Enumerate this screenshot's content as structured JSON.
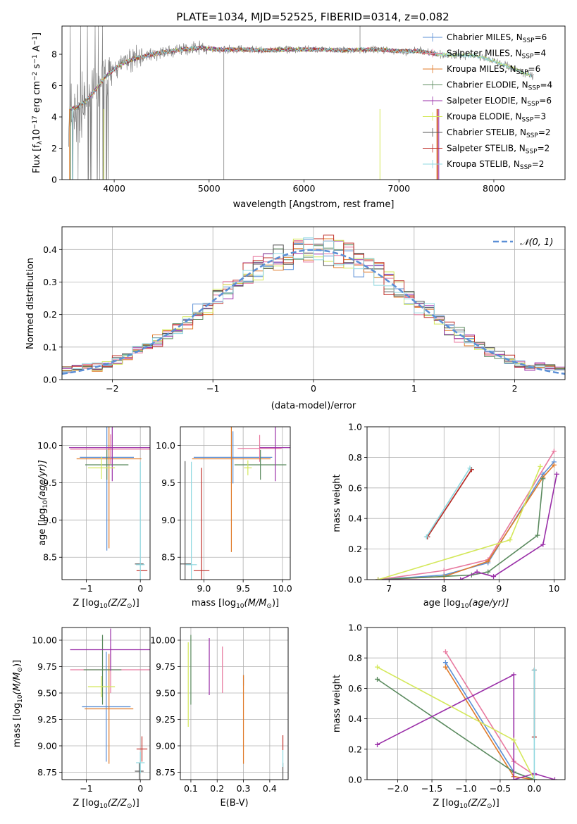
{
  "figure": {
    "title": "PLATE=1034, MJD=52525, FIBERID=0314, z=0.082"
  },
  "series": [
    {
      "key": "chabrier_miles",
      "label_pre": "Chabrier MILES, N",
      "label_sub": "SSP",
      "label_post": "=6",
      "color": "#5b8fd6"
    },
    {
      "key": "salpeter_miles",
      "label_pre": "Salpeter MILES, N",
      "label_sub": "SSP",
      "label_post": "=4",
      "color": "#e8799f"
    },
    {
      "key": "kroupa_miles",
      "label_pre": "Kroupa MILES, N",
      "label_sub": "SSP",
      "label_post": "=6",
      "color": "#e07b2a"
    },
    {
      "key": "chabrier_elodie",
      "label_pre": "Chabrier ELODIE, N",
      "label_sub": "SSP",
      "label_post": "=4",
      "color": "#5a8a5e"
    },
    {
      "key": "salpeter_elodie",
      "label_pre": "Salpeter ELODIE, N",
      "label_sub": "SSP",
      "label_post": "=6",
      "color": "#9a2fa8"
    },
    {
      "key": "kroupa_elodie",
      "label_pre": "Kroupa ELODIE, N",
      "label_sub": "SSP",
      "label_post": "=3",
      "color": "#d4e85a"
    },
    {
      "key": "chabrier_stelib",
      "label_pre": "Chabrier STELIB, N",
      "label_sub": "SSP",
      "label_post": "=2",
      "color": "#555555"
    },
    {
      "key": "salpeter_stelib",
      "label_pre": "Salpeter STELIB, N",
      "label_sub": "SSP",
      "label_post": "=2",
      "color": "#c0302a"
    },
    {
      "key": "kroupa_stelib",
      "label_pre": "Kroupa STELIB, N",
      "label_sub": "SSP",
      "label_post": "=2",
      "color": "#8fd8e0"
    }
  ],
  "chart_data": [
    {
      "id": "spectrum",
      "type": "line",
      "xlabel": "wavelength [Angstrom, rest frame]",
      "ylabel_parts": [
        "Flux [f",
        "λ",
        "10",
        "−17",
        " erg cm",
        "−2",
        " s",
        "−1",
        " A",
        "−1",
        "]"
      ],
      "xlim": [
        3450,
        8750
      ],
      "ylim": [
        0,
        9.8
      ],
      "xticks": [
        4000,
        5000,
        6000,
        7000,
        8000
      ],
      "yticks": [
        0,
        2,
        4,
        6,
        8
      ],
      "data_color": "#808080",
      "data_points": [
        [
          3520,
          4.3
        ],
        [
          3600,
          4.4
        ],
        [
          3700,
          4.8
        ],
        [
          3800,
          5.6
        ],
        [
          3900,
          6.5
        ],
        [
          4000,
          7.0
        ],
        [
          4100,
          7.4
        ],
        [
          4200,
          7.7
        ],
        [
          4300,
          7.8
        ],
        [
          4400,
          8.0
        ],
        [
          4500,
          8.1
        ],
        [
          4600,
          8.2
        ],
        [
          4700,
          8.3
        ],
        [
          4800,
          8.35
        ],
        [
          4900,
          8.4
        ],
        [
          5000,
          8.35
        ],
        [
          5100,
          8.3
        ],
        [
          5200,
          8.3
        ],
        [
          5400,
          8.3
        ],
        [
          5600,
          8.25
        ],
        [
          5800,
          8.3
        ],
        [
          6000,
          8.3
        ],
        [
          6200,
          8.3
        ],
        [
          6400,
          8.25
        ],
        [
          6600,
          8.3
        ],
        [
          6800,
          8.3
        ],
        [
          7000,
          8.2
        ],
        [
          7200,
          8.2
        ],
        [
          7400,
          8.0
        ],
        [
          7600,
          7.95
        ],
        [
          7800,
          7.9
        ],
        [
          8000,
          7.6
        ],
        [
          8200,
          7.1
        ],
        [
          8400,
          6.6
        ]
      ],
      "model_points": [
        [
          3520,
          4.5
        ],
        [
          3600,
          4.6
        ],
        [
          3700,
          5.0
        ],
        [
          3800,
          5.7
        ],
        [
          3900,
          6.5
        ],
        [
          4000,
          7.05
        ],
        [
          4100,
          7.45
        ],
        [
          4200,
          7.7
        ],
        [
          4300,
          7.85
        ],
        [
          4400,
          8.0
        ],
        [
          4500,
          8.1
        ],
        [
          4600,
          8.2
        ],
        [
          4700,
          8.3
        ],
        [
          4800,
          8.35
        ],
        [
          4900,
          8.4
        ],
        [
          5000,
          8.35
        ],
        [
          5100,
          8.3
        ],
        [
          5200,
          8.3
        ],
        [
          5400,
          8.3
        ],
        [
          5600,
          8.25
        ],
        [
          5800,
          8.3
        ],
        [
          6000,
          8.3
        ],
        [
          6200,
          8.3
        ],
        [
          6400,
          8.25
        ],
        [
          6600,
          8.3
        ],
        [
          6800,
          8.3
        ],
        [
          7000,
          8.2
        ],
        [
          7200,
          8.2
        ],
        [
          7400,
          8.0
        ],
        [
          7600,
          7.95
        ],
        [
          7800,
          7.9
        ],
        [
          8000,
          7.6
        ],
        [
          8200,
          7.1
        ],
        [
          8400,
          6.6
        ]
      ],
      "model_end": [
        7400,
        7400,
        7400,
        7400,
        7400,
        8400,
        7400,
        7400,
        8400
      ]
    },
    {
      "id": "residuals",
      "type": "histogram",
      "xlabel": "(data-model)/error",
      "ylabel": "Normed distribution",
      "xlim": [
        -2.5,
        2.5
      ],
      "ylim": [
        0,
        0.47
      ],
      "xticks": [
        -2,
        -1,
        0,
        1,
        2
      ],
      "yticks": [
        0.0,
        0.1,
        0.2,
        0.3,
        0.4
      ],
      "bin_width": 0.1,
      "gaussian_label": "𝒩(0, 1)",
      "gaussian_color": "#5b8fd6"
    },
    {
      "id": "age_vs_Z",
      "type": "errorbar",
      "xlabel_parts": [
        "Z [log",
        "10",
        "(Z/Z",
        "⊙",
        ")]"
      ],
      "ylabel_parts": [
        "age  [log",
        "10",
        "(age/yr)]"
      ],
      "xlim": [
        -1.45,
        0.18
      ],
      "ylim": [
        8.2,
        10.25
      ],
      "xticks": [
        -1,
        0
      ],
      "yticks": [
        8.5,
        9.0,
        9.5,
        10.0
      ],
      "points": [
        {
          "s": 0,
          "x": -0.62,
          "xerr": 0.5,
          "y": 9.84,
          "yerr": 1.25
        },
        {
          "s": 1,
          "x": -0.55,
          "xerr": 0.75,
          "y": 9.95,
          "yerr": 0.2
        },
        {
          "s": 2,
          "x": -0.58,
          "xerr": 0.6,
          "y": 9.82,
          "yerr": 1.2
        },
        {
          "s": 3,
          "x": -0.62,
          "xerr": 0.4,
          "y": 9.74,
          "yerr": 0.2
        },
        {
          "s": 4,
          "x": -0.52,
          "xerr": 0.8,
          "y": 9.97,
          "yerr": 0.45
        },
        {
          "s": 5,
          "x": -0.72,
          "xerr": 0.25,
          "y": 9.7,
          "yerr": 0.15
        },
        {
          "s": 6,
          "x": -0.02,
          "xerr": 0.08,
          "y": 8.41,
          "yerr": 0.0
        },
        {
          "s": 7,
          "x": 0.03,
          "xerr": 0.1,
          "y": 8.32,
          "yerr": 0.0
        },
        {
          "s": 8,
          "x": 0.0,
          "xerr": 0.08,
          "y": 8.4,
          "yerr": 1.38
        }
      ]
    },
    {
      "id": "age_vs_mass",
      "type": "errorbar",
      "xlabel_parts": [
        "mass [log",
        "10",
        "(M/M",
        "⊙",
        ")]"
      ],
      "xlim": [
        8.7,
        10.1
      ],
      "ylim": [
        8.2,
        10.25
      ],
      "xticks": [
        9.0,
        9.5,
        10.0
      ],
      "yticks": [
        8.5,
        9.0,
        9.5,
        10.0
      ],
      "points": [
        {
          "s": 0,
          "x": 9.37,
          "xerr": 0.5,
          "y": 9.84,
          "yerr": 0.35
        },
        {
          "s": 1,
          "x": 9.71,
          "xerr": 0.28,
          "y": 9.96,
          "yerr": 0.18
        },
        {
          "s": 2,
          "x": 9.35,
          "xerr": 0.5,
          "y": 9.82,
          "yerr": 1.25
        },
        {
          "s": 3,
          "x": 9.72,
          "xerr": 0.33,
          "y": 9.74,
          "yerr": 0.2
        },
        {
          "s": 4,
          "x": 9.91,
          "xerr": 0.2,
          "y": 9.97,
          "yerr": 0.45
        },
        {
          "s": 5,
          "x": 9.56,
          "xerr": 0.05,
          "y": 9.7,
          "yerr": 0.1
        },
        {
          "s": 6,
          "x": 8.76,
          "xerr": 0.08,
          "y": 8.41,
          "yerr": 1.38
        },
        {
          "s": 7,
          "x": 8.97,
          "xerr": 0.1,
          "y": 8.32,
          "yerr": 1.38
        },
        {
          "s": 8,
          "x": 8.84,
          "xerr": 0.07,
          "y": 8.4,
          "yerr": 1.38
        }
      ]
    },
    {
      "id": "weight_vs_age",
      "type": "line",
      "xlabel_parts": [
        "age  [log",
        "10",
        "(age/yr)]"
      ],
      "ylabel": "mass weight",
      "xlim": [
        6.6,
        10.2
      ],
      "ylim": [
        0,
        1.0
      ],
      "xticks": [
        7,
        8,
        9,
        10
      ],
      "yticks": [
        0.0,
        0.2,
        0.4,
        0.6,
        0.8,
        1.0
      ],
      "lines": [
        {
          "s": 0,
          "pts": [
            [
              6.8,
              0
            ],
            [
              8.0,
              0.03
            ],
            [
              8.8,
              0.11
            ],
            [
              9.8,
              0.69
            ],
            [
              10.0,
              0.77
            ]
          ]
        },
        {
          "s": 1,
          "pts": [
            [
              6.8,
              0
            ],
            [
              8.0,
              0.06
            ],
            [
              8.8,
              0.13
            ],
            [
              10.0,
              0.84
            ]
          ]
        },
        {
          "s": 2,
          "pts": [
            [
              6.8,
              0
            ],
            [
              8.0,
              0.02
            ],
            [
              8.8,
              0.12
            ],
            [
              9.8,
              0.67
            ],
            [
              10.0,
              0.75
            ]
          ]
        },
        {
          "s": 3,
          "pts": [
            [
              6.8,
              0
            ],
            [
              8.5,
              0.03
            ],
            [
              8.8,
              0.05
            ],
            [
              9.7,
              0.29
            ],
            [
              9.8,
              0.66
            ]
          ]
        },
        {
          "s": 4,
          "pts": [
            [
              6.8,
              0
            ],
            [
              8.3,
              0.0
            ],
            [
              8.6,
              0.05
            ],
            [
              8.9,
              0.02
            ],
            [
              9.8,
              0.23
            ],
            [
              10.05,
              0.69
            ]
          ]
        },
        {
          "s": 5,
          "pts": [
            [
              6.8,
              0
            ],
            [
              9.2,
              0.26
            ],
            [
              9.75,
              0.74
            ]
          ]
        },
        {
          "s": 6,
          "pts": [
            [
              7.7,
              0.28
            ],
            [
              8.5,
              0.72
            ]
          ]
        },
        {
          "s": 7,
          "pts": [
            [
              7.7,
              0.28
            ],
            [
              8.5,
              0.72
            ]
          ]
        },
        {
          "s": 8,
          "pts": [
            [
              7.68,
              0.28
            ],
            [
              8.47,
              0.73
            ]
          ]
        }
      ]
    },
    {
      "id": "mass_vs_Z",
      "type": "errorbar",
      "xlabel_parts": [
        "Z [log",
        "10",
        "(Z/Z",
        "⊙",
        ")]"
      ],
      "ylabel_parts": [
        "mass [log",
        "10",
        "(M/M",
        "⊙",
        ")]"
      ],
      "xlim": [
        -1.45,
        0.18
      ],
      "ylim": [
        8.68,
        10.12
      ],
      "xticks": [
        -1,
        0
      ],
      "yticks": [
        8.75,
        9.0,
        9.25,
        9.5,
        9.75,
        10.0
      ],
      "points": [
        {
          "s": 0,
          "x": -0.63,
          "xerr": 0.45,
          "y": 9.37,
          "yerr": 0.52
        },
        {
          "s": 1,
          "x": -0.55,
          "xerr": 0.75,
          "y": 9.72,
          "yerr": 0.22
        },
        {
          "s": 2,
          "x": -0.58,
          "xerr": 0.45,
          "y": 9.35,
          "yerr": 0.52
        },
        {
          "s": 3,
          "x": -0.7,
          "xerr": 0.35,
          "y": 9.72,
          "yerr": 0.33
        },
        {
          "s": 4,
          "x": -0.55,
          "xerr": 0.75,
          "y": 9.91,
          "yerr": 0.2
        },
        {
          "s": 5,
          "x": -0.72,
          "xerr": 0.25,
          "y": 9.56,
          "yerr": 0.1
        },
        {
          "s": 6,
          "x": -0.02,
          "xerr": 0.08,
          "y": 8.76,
          "yerr": 0.08
        },
        {
          "s": 7,
          "x": 0.03,
          "xerr": 0.1,
          "y": 8.97,
          "yerr": 0.12
        },
        {
          "s": 8,
          "x": 0.0,
          "xerr": 0.08,
          "y": 8.84,
          "yerr": 0.1
        }
      ]
    },
    {
      "id": "mass_vs_EBV",
      "type": "errorbar",
      "xlabel": "E(B-V)",
      "xlim": [
        0.06,
        0.47
      ],
      "ylim": [
        8.68,
        10.12
      ],
      "xticks": [
        0.1,
        0.2,
        0.3,
        0.4
      ],
      "yticks": [
        8.75,
        9.0,
        9.25,
        9.5,
        9.75,
        10.0
      ],
      "points": [
        {
          "s": 0,
          "x": 0.3,
          "xerr": 0,
          "y": 9.62,
          "yerr": 0.05
        },
        {
          "s": 1,
          "x": 0.22,
          "xerr": 0,
          "y": 9.72,
          "yerr": 0.22
        },
        {
          "s": 2,
          "x": 0.3,
          "xerr": 0,
          "y": 9.25,
          "yerr": 0.42
        },
        {
          "s": 3,
          "x": 0.1,
          "xerr": 0,
          "y": 9.72,
          "yerr": 0.33
        },
        {
          "s": 4,
          "x": 0.17,
          "xerr": 0,
          "y": 9.75,
          "yerr": 0.27
        },
        {
          "s": 5,
          "x": 0.09,
          "xerr": 0,
          "y": 9.58,
          "yerr": 0.4
        },
        {
          "s": 6,
          "x": 0.45,
          "xerr": 0,
          "y": 8.76,
          "yerr": 0.08
        },
        {
          "s": 7,
          "x": 0.45,
          "xerr": 0,
          "y": 9.03,
          "yerr": 0.07
        },
        {
          "s": 8,
          "x": 0.45,
          "xerr": 0,
          "y": 8.88,
          "yerr": 0.08
        }
      ]
    },
    {
      "id": "weight_vs_Z",
      "type": "line",
      "xlabel_parts": [
        "Z [log",
        "10",
        "(Z/Z",
        "⊙",
        ")]"
      ],
      "ylabel": "mass weight",
      "xlim": [
        -2.45,
        0.45
      ],
      "ylim": [
        0,
        1.0
      ],
      "xticks": [
        -2.0,
        -1.5,
        -1.0,
        -0.5,
        0.0
      ],
      "yticks": [
        0.0,
        0.2,
        0.4,
        0.6,
        0.8,
        1.0
      ],
      "lines": [
        {
          "s": 0,
          "pts": [
            [
              -1.3,
              0.77
            ],
            [
              -0.3,
              0.05
            ],
            [
              0.0,
              0.0
            ]
          ]
        },
        {
          "s": 1,
          "pts": [
            [
              -1.3,
              0.84
            ],
            [
              -0.3,
              0.12
            ],
            [
              0.0,
              0.03
            ]
          ]
        },
        {
          "s": 2,
          "pts": [
            [
              -1.3,
              0.74
            ],
            [
              -0.3,
              0.02
            ],
            [
              0.0,
              0.0
            ]
          ]
        },
        {
          "s": 3,
          "pts": [
            [
              -2.3,
              0.66
            ],
            [
              -0.3,
              0.05
            ],
            [
              0.0,
              0.0
            ]
          ]
        },
        {
          "s": 4,
          "pts": [
            [
              -2.3,
              0.23
            ],
            [
              -0.3,
              0.69
            ],
            [
              -0.3,
              0.0
            ],
            [
              0.0,
              0.04
            ],
            [
              0.3,
              0.0
            ]
          ]
        },
        {
          "s": 5,
          "pts": [
            [
              -2.3,
              0.74
            ],
            [
              -0.3,
              0.26
            ],
            [
              0.0,
              0.0
            ]
          ]
        },
        {
          "s": 6,
          "pts": [
            [
              0.0,
              0.72
            ],
            [
              0.0,
              0.28
            ]
          ]
        },
        {
          "s": 7,
          "pts": [
            [
              0.0,
              0.72
            ],
            [
              0.0,
              0.28
            ]
          ]
        },
        {
          "s": 8,
          "pts": [
            [
              0.0,
              0.72
            ],
            [
              0.0,
              0.0
            ]
          ]
        }
      ]
    }
  ]
}
